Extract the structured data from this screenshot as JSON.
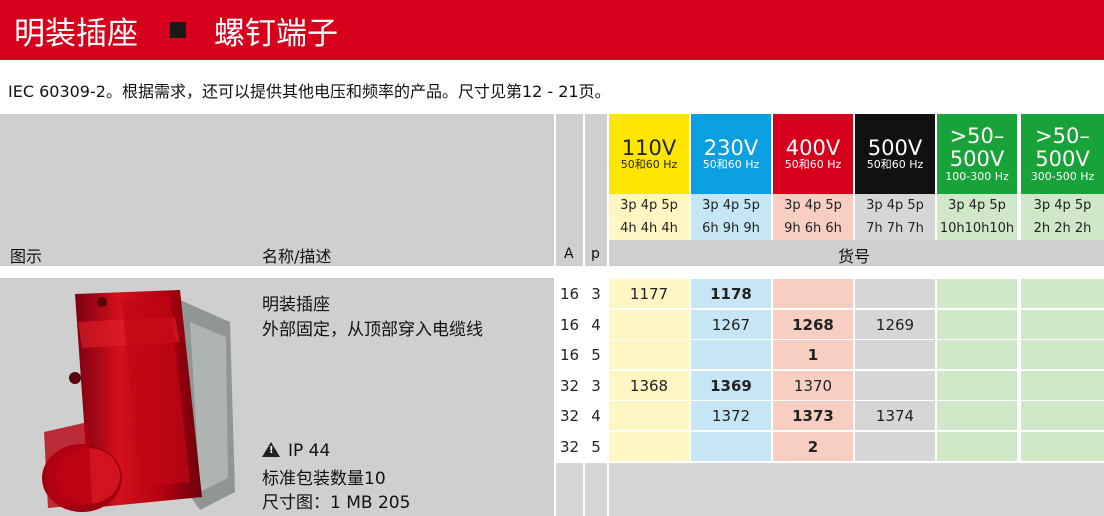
{
  "banner": {
    "title": "明装插座",
    "subtitle": "螺钉端子"
  },
  "intro": "IEC 60309-2。根据需求，还可以提供其他电压和频率的产品。尺寸见第12 - 21页。",
  "header": {
    "col_image": "图示",
    "col_name": "名称/描述",
    "col_a": "A",
    "col_p": "p",
    "col_order": "货号"
  },
  "voltages": [
    {
      "v": "110V",
      "f": "50和60 Hz",
      "p": "3p 4p 5p",
      "h": "4h 4h 4h",
      "color": "#ffe600",
      "tint": "#fff6c4",
      "text": "#222222"
    },
    {
      "v": "230V",
      "f": "50和60 Hz",
      "p": "3p 4p 5p",
      "h": "6h 9h 9h",
      "color": "#0aa0e0",
      "tint": "#c6e6f6",
      "text": "#ffffff"
    },
    {
      "v": "400V",
      "f": "50和60 Hz",
      "p": "3p 4p 5p",
      "h": "9h 6h 6h",
      "color": "#d6001c",
      "tint": "#f6cfc2",
      "text": "#ffffff"
    },
    {
      "v": "500V",
      "f": "50和60 Hz",
      "p": "3p 4p 5p",
      "h": "7h 7h 7h",
      "color": "#111111",
      "tint": "#d6d6d6",
      "text": "#ffffff"
    },
    {
      "v": ">50–\n500V",
      "f": "100-300 Hz",
      "p": "3p 4p 5p",
      "h": "10h10h10h",
      "color": "#17a33a",
      "tint": "#cfe8c8",
      "text": "#ffffff"
    },
    {
      "v": ">50–\n500V",
      "f": "300-500 Hz",
      "p": "3p 4p 5p",
      "h": "2h 2h 2h",
      "color": "#17a33a",
      "tint": "#cfe8c8",
      "text": "#ffffff"
    }
  ],
  "product": {
    "name": "明装插座",
    "detail": "外部固定，从顶部穿入电缆线",
    "ip": "IP 44",
    "pack": "标准包装数量10",
    "dim": "尺寸图：1 MB 205",
    "image_icon": "red-wall-socket-image"
  },
  "rows": [
    {
      "a": "16",
      "p": "3",
      "vals": [
        "1177",
        "1178",
        "",
        "",
        "",
        ""
      ],
      "bold": [
        false,
        true,
        false,
        false,
        false,
        false
      ]
    },
    {
      "a": "16",
      "p": "4",
      "vals": [
        "",
        "1267",
        "1268",
        "1269",
        "",
        ""
      ],
      "bold": [
        false,
        false,
        true,
        false,
        false,
        false
      ]
    },
    {
      "a": "16",
      "p": "5",
      "vals": [
        "",
        "",
        "1",
        "",
        "",
        ""
      ],
      "bold": [
        false,
        false,
        true,
        false,
        false,
        false
      ]
    },
    {
      "a": "32",
      "p": "3",
      "vals": [
        "1368",
        "1369",
        "1370",
        "",
        "",
        ""
      ],
      "bold": [
        false,
        true,
        false,
        false,
        false,
        false
      ]
    },
    {
      "a": "32",
      "p": "4",
      "vals": [
        "",
        "1372",
        "1373",
        "1374",
        "",
        ""
      ],
      "bold": [
        false,
        false,
        true,
        false,
        false,
        false
      ]
    },
    {
      "a": "32",
      "p": "5",
      "vals": [
        "",
        "",
        "2",
        "",
        "",
        ""
      ],
      "bold": [
        false,
        false,
        true,
        false,
        false,
        false
      ]
    }
  ]
}
